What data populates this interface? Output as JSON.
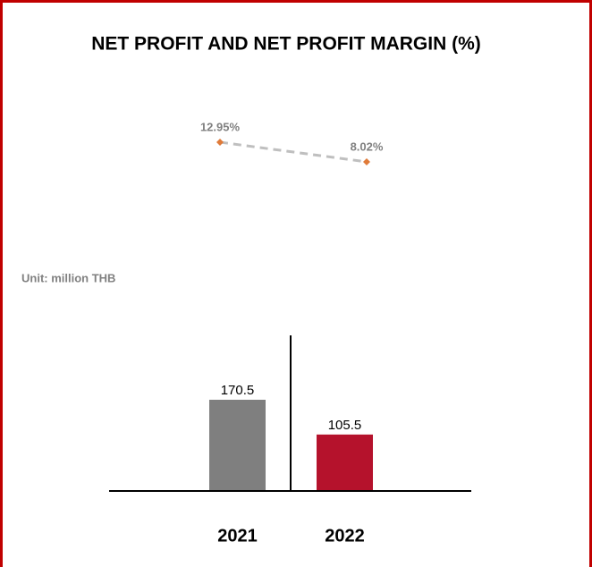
{
  "chart_data": [
    {
      "type": "line",
      "title": "NET PROFIT AND NET PROFIT MARGIN (%)",
      "values": [
        12.95,
        8.02
      ],
      "value_labels": [
        "12.95%",
        "8.02%"
      ],
      "color": "#e07b39",
      "line_color": "#bfbfbf"
    },
    {
      "type": "bar",
      "subtitle": "Unit: million THB",
      "categories": [
        "2021",
        "2022"
      ],
      "values": [
        170.5,
        105.5
      ],
      "colors": [
        "#7f7f7f",
        "#b5122c"
      ]
    }
  ]
}
